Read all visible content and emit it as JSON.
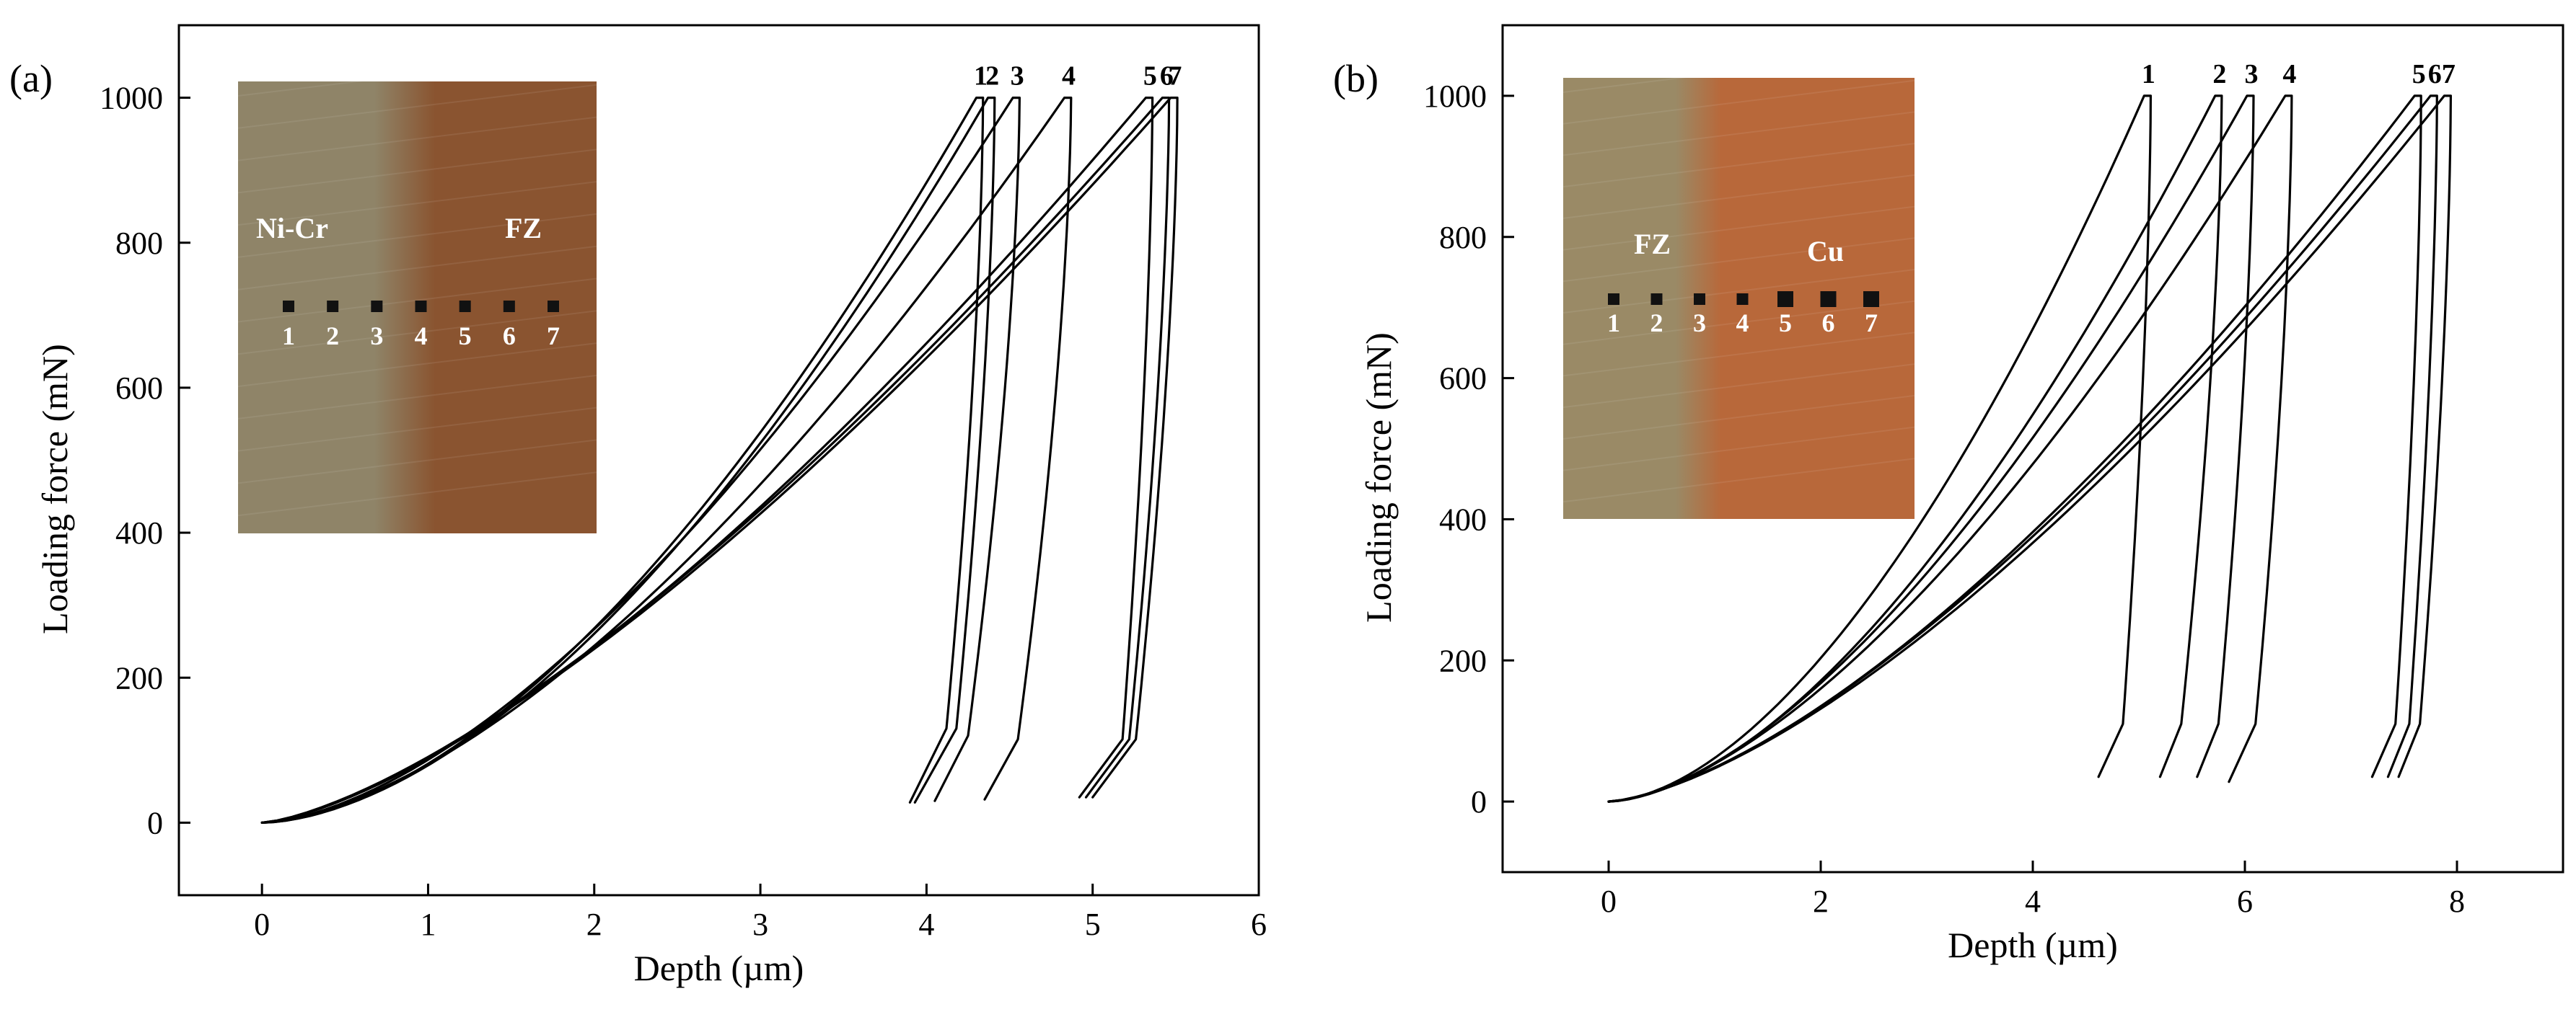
{
  "chart_data": [
    {
      "type": "line",
      "panel_label": "(a)",
      "xlabel": "Depth (µm)",
      "ylabel": "Loading force (mN)",
      "xlim": [
        -0.5,
        6
      ],
      "ylim": [
        -100,
        1100
      ],
      "xticks": [
        0,
        1,
        2,
        3,
        4,
        5,
        6
      ],
      "yticks": [
        0,
        200,
        400,
        600,
        800,
        1000
      ],
      "inset": {
        "region_labels": [
          "Ni-Cr",
          "FZ"
        ],
        "indent_labels": [
          "1",
          "2",
          "3",
          "4",
          "5",
          "6",
          "7"
        ],
        "colors": {
          "left": "#8f8468",
          "right": "#8a5430"
        }
      },
      "series": [
        {
          "label": "1",
          "max_depth": 4.3,
          "final_depth": 3.9,
          "max_load": 1000,
          "min_load": 28,
          "unload_knee": [
            4.12,
            130
          ],
          "exponent": 1.72
        },
        {
          "label": "2",
          "max_depth": 4.37,
          "final_depth": 3.93,
          "max_load": 1000,
          "min_load": 28,
          "unload_knee": [
            4.18,
            130
          ],
          "exponent": 1.72
        },
        {
          "label": "3",
          "max_depth": 4.52,
          "final_depth": 4.05,
          "max_load": 1000,
          "min_load": 30,
          "unload_knee": [
            4.25,
            120
          ],
          "exponent": 1.62
        },
        {
          "label": "4",
          "max_depth": 4.83,
          "final_depth": 4.35,
          "max_load": 1000,
          "min_load": 32,
          "unload_knee": [
            4.55,
            115
          ],
          "exponent": 1.6
        },
        {
          "label": "5",
          "max_depth": 5.32,
          "final_depth": 4.92,
          "max_load": 1000,
          "min_load": 35,
          "unload_knee": [
            5.18,
            115
          ],
          "exponent": 1.45
        },
        {
          "label": "6",
          "max_depth": 5.42,
          "final_depth": 4.96,
          "max_load": 1000,
          "min_load": 35,
          "unload_knee": [
            5.22,
            115
          ],
          "exponent": 1.42
        },
        {
          "label": "7",
          "max_depth": 5.47,
          "final_depth": 5.0,
          "max_load": 1000,
          "min_load": 35,
          "unload_knee": [
            5.26,
            115
          ],
          "exponent": 1.42
        }
      ]
    },
    {
      "type": "line",
      "panel_label": "(b)",
      "xlabel": "Depth (µm)",
      "ylabel": "Loading force (mN)",
      "xlim": [
        -1,
        9
      ],
      "ylim": [
        -100,
        1100
      ],
      "xticks": [
        0,
        2,
        4,
        6,
        8
      ],
      "yticks": [
        0,
        200,
        400,
        600,
        800,
        1000
      ],
      "inset": {
        "region_labels": [
          "FZ",
          "Cu"
        ],
        "indent_labels": [
          "1",
          "2",
          "3",
          "4",
          "5",
          "6",
          "7"
        ],
        "colors": {
          "left": "#9a8a66",
          "right": "#b8683a"
        }
      },
      "series": [
        {
          "label": "1",
          "max_depth": 5.05,
          "final_depth": 4.62,
          "max_load": 1000,
          "min_load": 35,
          "unload_knee": [
            4.85,
            110
          ],
          "exponent": 1.72
        },
        {
          "label": "2",
          "max_depth": 5.72,
          "final_depth": 5.2,
          "max_load": 1000,
          "min_load": 35,
          "unload_knee": [
            5.4,
            110
          ],
          "exponent": 1.68
        },
        {
          "label": "3",
          "max_depth": 6.02,
          "final_depth": 5.55,
          "max_load": 1000,
          "min_load": 35,
          "unload_knee": [
            5.75,
            110
          ],
          "exponent": 1.62
        },
        {
          "label": "4",
          "max_depth": 6.38,
          "final_depth": 5.85,
          "max_load": 1000,
          "min_load": 28,
          "unload_knee": [
            6.1,
            110
          ],
          "exponent": 1.58
        },
        {
          "label": "5",
          "max_depth": 7.6,
          "final_depth": 7.2,
          "max_load": 1000,
          "min_load": 35,
          "unload_knee": [
            7.42,
            110
          ],
          "exponent": 1.5
        },
        {
          "label": "6",
          "max_depth": 7.75,
          "final_depth": 7.35,
          "max_load": 1000,
          "min_load": 35,
          "unload_knee": [
            7.55,
            110
          ],
          "exponent": 1.48
        },
        {
          "label": "7",
          "max_depth": 7.88,
          "final_depth": 7.45,
          "max_load": 1000,
          "min_load": 35,
          "unload_knee": [
            7.65,
            110
          ],
          "exponent": 1.48
        }
      ]
    }
  ]
}
